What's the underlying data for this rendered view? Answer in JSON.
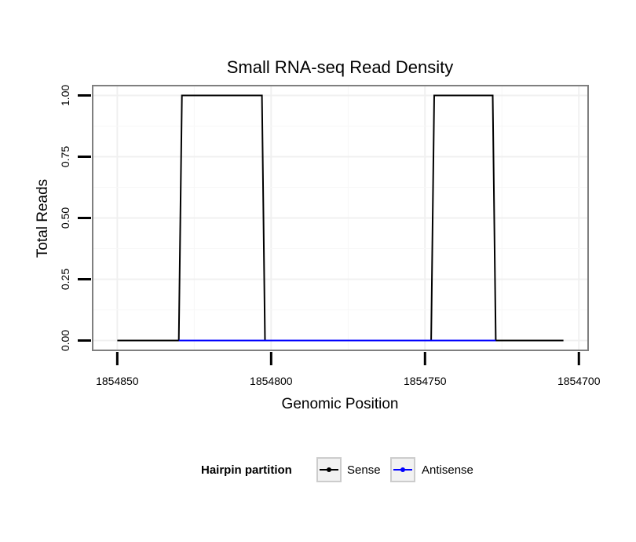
{
  "chart_data": {
    "type": "line",
    "title": "Small RNA-seq Read Density",
    "xlabel": "Genomic Position",
    "ylabel": "Total Reads",
    "x_reversed": true,
    "xlim": [
      1854858,
      1854697
    ],
    "ylim": [
      -0.04,
      1.04
    ],
    "x_ticks": [
      1854850,
      1854800,
      1854750,
      1854700
    ],
    "x_tick_labels": [
      "1854850",
      "1854800",
      "1854750",
      "1854700"
    ],
    "y_ticks": [
      0,
      0.25,
      0.5,
      0.75,
      1
    ],
    "y_tick_labels": [
      "0.00",
      "0.25",
      "0.50",
      "0.75",
      "1.00"
    ],
    "grid": true,
    "legend": {
      "title": "Hairpin partition",
      "position": "bottom",
      "entries": [
        "Sense",
        "Antisense"
      ]
    },
    "series": [
      {
        "name": "Sense",
        "color": "#000000",
        "points": [
          [
            1854850,
            0
          ],
          [
            1854830,
            0
          ],
          [
            1854829,
            1
          ],
          [
            1854803,
            1
          ],
          [
            1854802,
            0
          ],
          [
            1854748,
            0
          ],
          [
            1854747,
            1
          ],
          [
            1854728,
            1
          ],
          [
            1854727,
            0
          ],
          [
            1854705,
            0
          ]
        ]
      },
      {
        "name": "Antisense",
        "color": "#0000ff",
        "points": [
          [
            1854830,
            0
          ],
          [
            1854802,
            0
          ],
          [
            1854748,
            0
          ],
          [
            1854727,
            0
          ]
        ]
      }
    ]
  }
}
